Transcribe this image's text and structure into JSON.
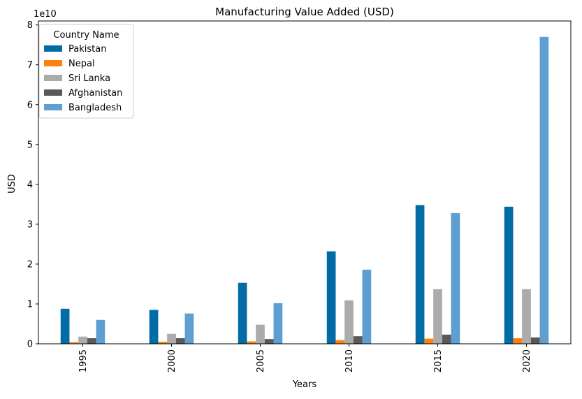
{
  "chart_data": {
    "type": "bar",
    "title": "Manufacturing Value Added (USD)",
    "xlabel": "Years",
    "ylabel": "USD",
    "y_scale_label": "1e10",
    "ylim": [
      0,
      8.1
    ],
    "yticks": [
      "0",
      "1",
      "2",
      "3",
      "4",
      "5",
      "6",
      "7",
      "8"
    ],
    "categories": [
      "1995",
      "2000",
      "2005",
      "2010",
      "2015",
      "2020"
    ],
    "legend_title": "Country Name",
    "legend_position": "top-left",
    "grid": false,
    "series": [
      {
        "name": "Pakistan",
        "color": "#006BA4",
        "values": [
          0.88,
          0.85,
          1.53,
          2.32,
          3.48,
          3.44
        ]
      },
      {
        "name": "Nepal",
        "color": "#FF800E",
        "values": [
          0.04,
          0.05,
          0.06,
          0.09,
          0.13,
          0.14
        ]
      },
      {
        "name": "Sri Lanka",
        "color": "#ABABAB",
        "values": [
          0.18,
          0.25,
          0.48,
          1.09,
          1.37,
          1.37
        ]
      },
      {
        "name": "Afghanistan",
        "color": "#595959",
        "values": [
          0.14,
          0.14,
          0.12,
          0.19,
          0.23,
          0.16
        ]
      },
      {
        "name": "Bangladesh",
        "color": "#5F9ED1",
        "values": [
          0.6,
          0.76,
          1.02,
          1.86,
          3.28,
          7.7
        ]
      }
    ]
  }
}
